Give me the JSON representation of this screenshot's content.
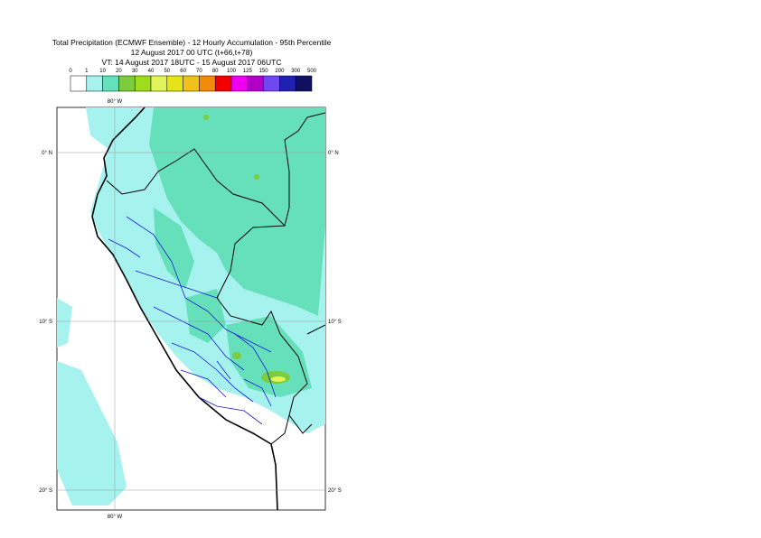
{
  "header": {
    "title": "Total Precipitation (ECMWF Ensemble) - 12 Hourly Accumulation - 95th Percentile",
    "base_time": "12 August 2017 00 UTC (t+66,t+78)",
    "valid_time": "VT: 14 August 2017 18UTC - 15 August 2017 06UTC"
  },
  "legend": {
    "labels": [
      "0",
      "1",
      "10",
      "20",
      "30",
      "40",
      "50",
      "60",
      "70",
      "80",
      "100",
      "125",
      "150",
      "200",
      "300",
      "500"
    ],
    "colors": [
      "#ffffff",
      "#a6f2ee",
      "#66e0bb",
      "#7ccc3c",
      "#9edc1c",
      "#e2f45c",
      "#e4e418",
      "#f0c01c",
      "#f28a0c",
      "#f20000",
      "#f000f0",
      "#b000c8",
      "#7048f0",
      "#2020b0",
      "#101060"
    ]
  },
  "map": {
    "lon_labels": [
      "80° W",
      "80° W"
    ],
    "lat_labels": [
      "0° N",
      "0° N",
      "10° S",
      "10° S",
      "20° S",
      "20° S"
    ]
  }
}
